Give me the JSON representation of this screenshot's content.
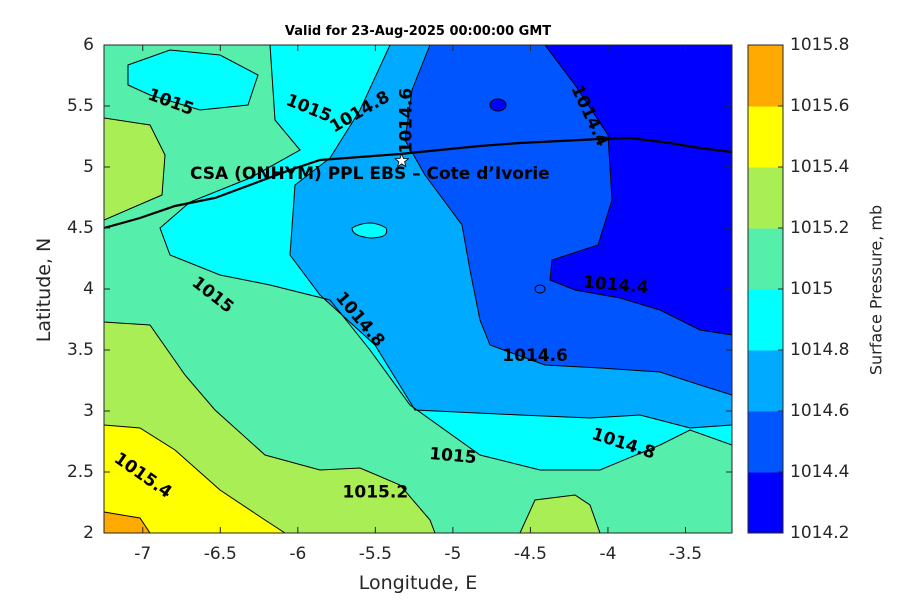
{
  "chart_data": {
    "type": "contour",
    "title": "Valid for 23-Aug-2025 00:00:00 GMT",
    "xlabel": "Longitude, E",
    "ylabel": "Latitude, N",
    "xlim": [
      -7.25,
      -3.2
    ],
    "ylim": [
      2,
      6
    ],
    "x_ticks": [
      "-7",
      "-6.5",
      "-6",
      "-5.5",
      "-5",
      "-4.5",
      "-4",
      "-3.5"
    ],
    "y_ticks": [
      "2",
      "2.5",
      "3",
      "3.5",
      "4",
      "4.5",
      "5",
      "5.5",
      "6"
    ],
    "colorbar": {
      "label": "Surface Pressure, mb",
      "levels": [
        1014.2,
        1014.4,
        1014.6,
        1014.8,
        1015.0,
        1015.2,
        1015.4,
        1015.6,
        1015.8
      ],
      "tick_labels": [
        "1014.2",
        "1014.4",
        "1014.6",
        "1014.8",
        "1015",
        "1015.2",
        "1015.4",
        "1015.6",
        "1015.8"
      ],
      "colors": [
        "#0000ff",
        "#0055ff",
        "#00aaff",
        "#00ffff",
        "#55eeaa",
        "#aaee55",
        "#ffff00",
        "#ffaa00",
        "#ff5500"
      ]
    },
    "contour_labels": [
      {
        "text": "1015",
        "lon": -6.82,
        "lat": 5.53
      },
      {
        "text": "1015",
        "lon": -5.93,
        "lat": 5.48
      },
      {
        "text": "1014.8",
        "lon": -5.6,
        "lat": 5.45
      },
      {
        "text": "1014.6",
        "lon": -5.3,
        "lat": 5.38
      },
      {
        "text": "1014.4",
        "lon": -4.12,
        "lat": 5.42
      },
      {
        "text": "1015",
        "lon": -6.55,
        "lat": 3.95
      },
      {
        "text": "1014.8",
        "lon": -5.6,
        "lat": 3.75
      },
      {
        "text": "1014.4",
        "lon": -3.95,
        "lat": 4.03
      },
      {
        "text": "1014.6",
        "lon": -4.47,
        "lat": 3.45
      },
      {
        "text": "1014.8",
        "lon": -3.9,
        "lat": 2.73
      },
      {
        "text": "1015",
        "lon": -5.0,
        "lat": 2.63
      },
      {
        "text": "1015.4",
        "lon": -7.0,
        "lat": 2.47
      },
      {
        "text": "1015.2",
        "lon": -5.5,
        "lat": 2.33
      }
    ],
    "site": {
      "label": "CSA (ONHYM) PPL EBS  – Cote d’Ivorie",
      "lon": -5.33,
      "lat": 5.05
    }
  }
}
